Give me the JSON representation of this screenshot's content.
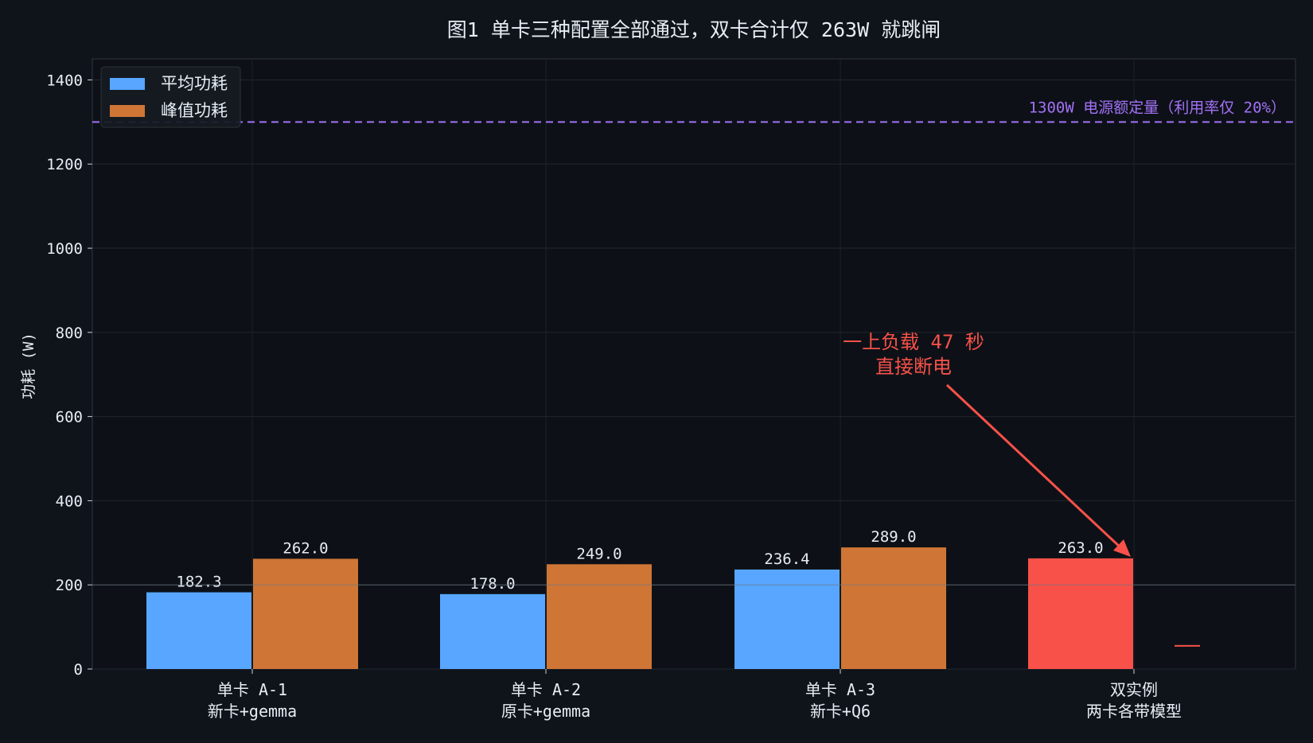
{
  "chart_data": {
    "type": "bar",
    "title": "图1  单卡三种配置全部通过，双卡合计仅 263W 就跳闸",
    "ylabel": "功耗 (W)",
    "xlabel": "",
    "ylim": [
      0,
      1450
    ],
    "yticks": [
      0,
      200,
      400,
      600,
      800,
      1000,
      1200,
      1400
    ],
    "grid": true,
    "legend_position": "top-left",
    "categories": [
      [
        "单卡 A-1",
        "新卡+gemma"
      ],
      [
        "单卡 A-2",
        "原卡+gemma"
      ],
      [
        "单卡 A-3",
        "新卡+Q6"
      ],
      [
        "双实例",
        "两卡各带模型"
      ]
    ],
    "series": [
      {
        "name": "平均功耗",
        "color": "#58a6ff",
        "values": [
          182.3,
          178.0,
          236.4,
          null
        ]
      },
      {
        "name": "峰值功耗",
        "color": "#cf7636",
        "values": [
          262.0,
          249.0,
          289.0,
          null
        ]
      }
    ],
    "special_bar": {
      "category_index": 3,
      "value": 263.0,
      "label": "263.0",
      "color": "#f85149"
    },
    "value_labels": {
      "avg": [
        "182.3",
        "178.0",
        "236.4"
      ],
      "peak": [
        "262.0",
        "249.0",
        "289.0"
      ]
    },
    "reference_line": {
      "value": 1300,
      "label": "1300W 电源额定量（利用率仅 20%）",
      "color": "#a371f7"
    },
    "annotation": {
      "lines": [
        "一上负载 47 秒",
        "直接断电"
      ],
      "color": "#f85149",
      "target_value": 263.0
    },
    "red_marker_value": 55
  }
}
